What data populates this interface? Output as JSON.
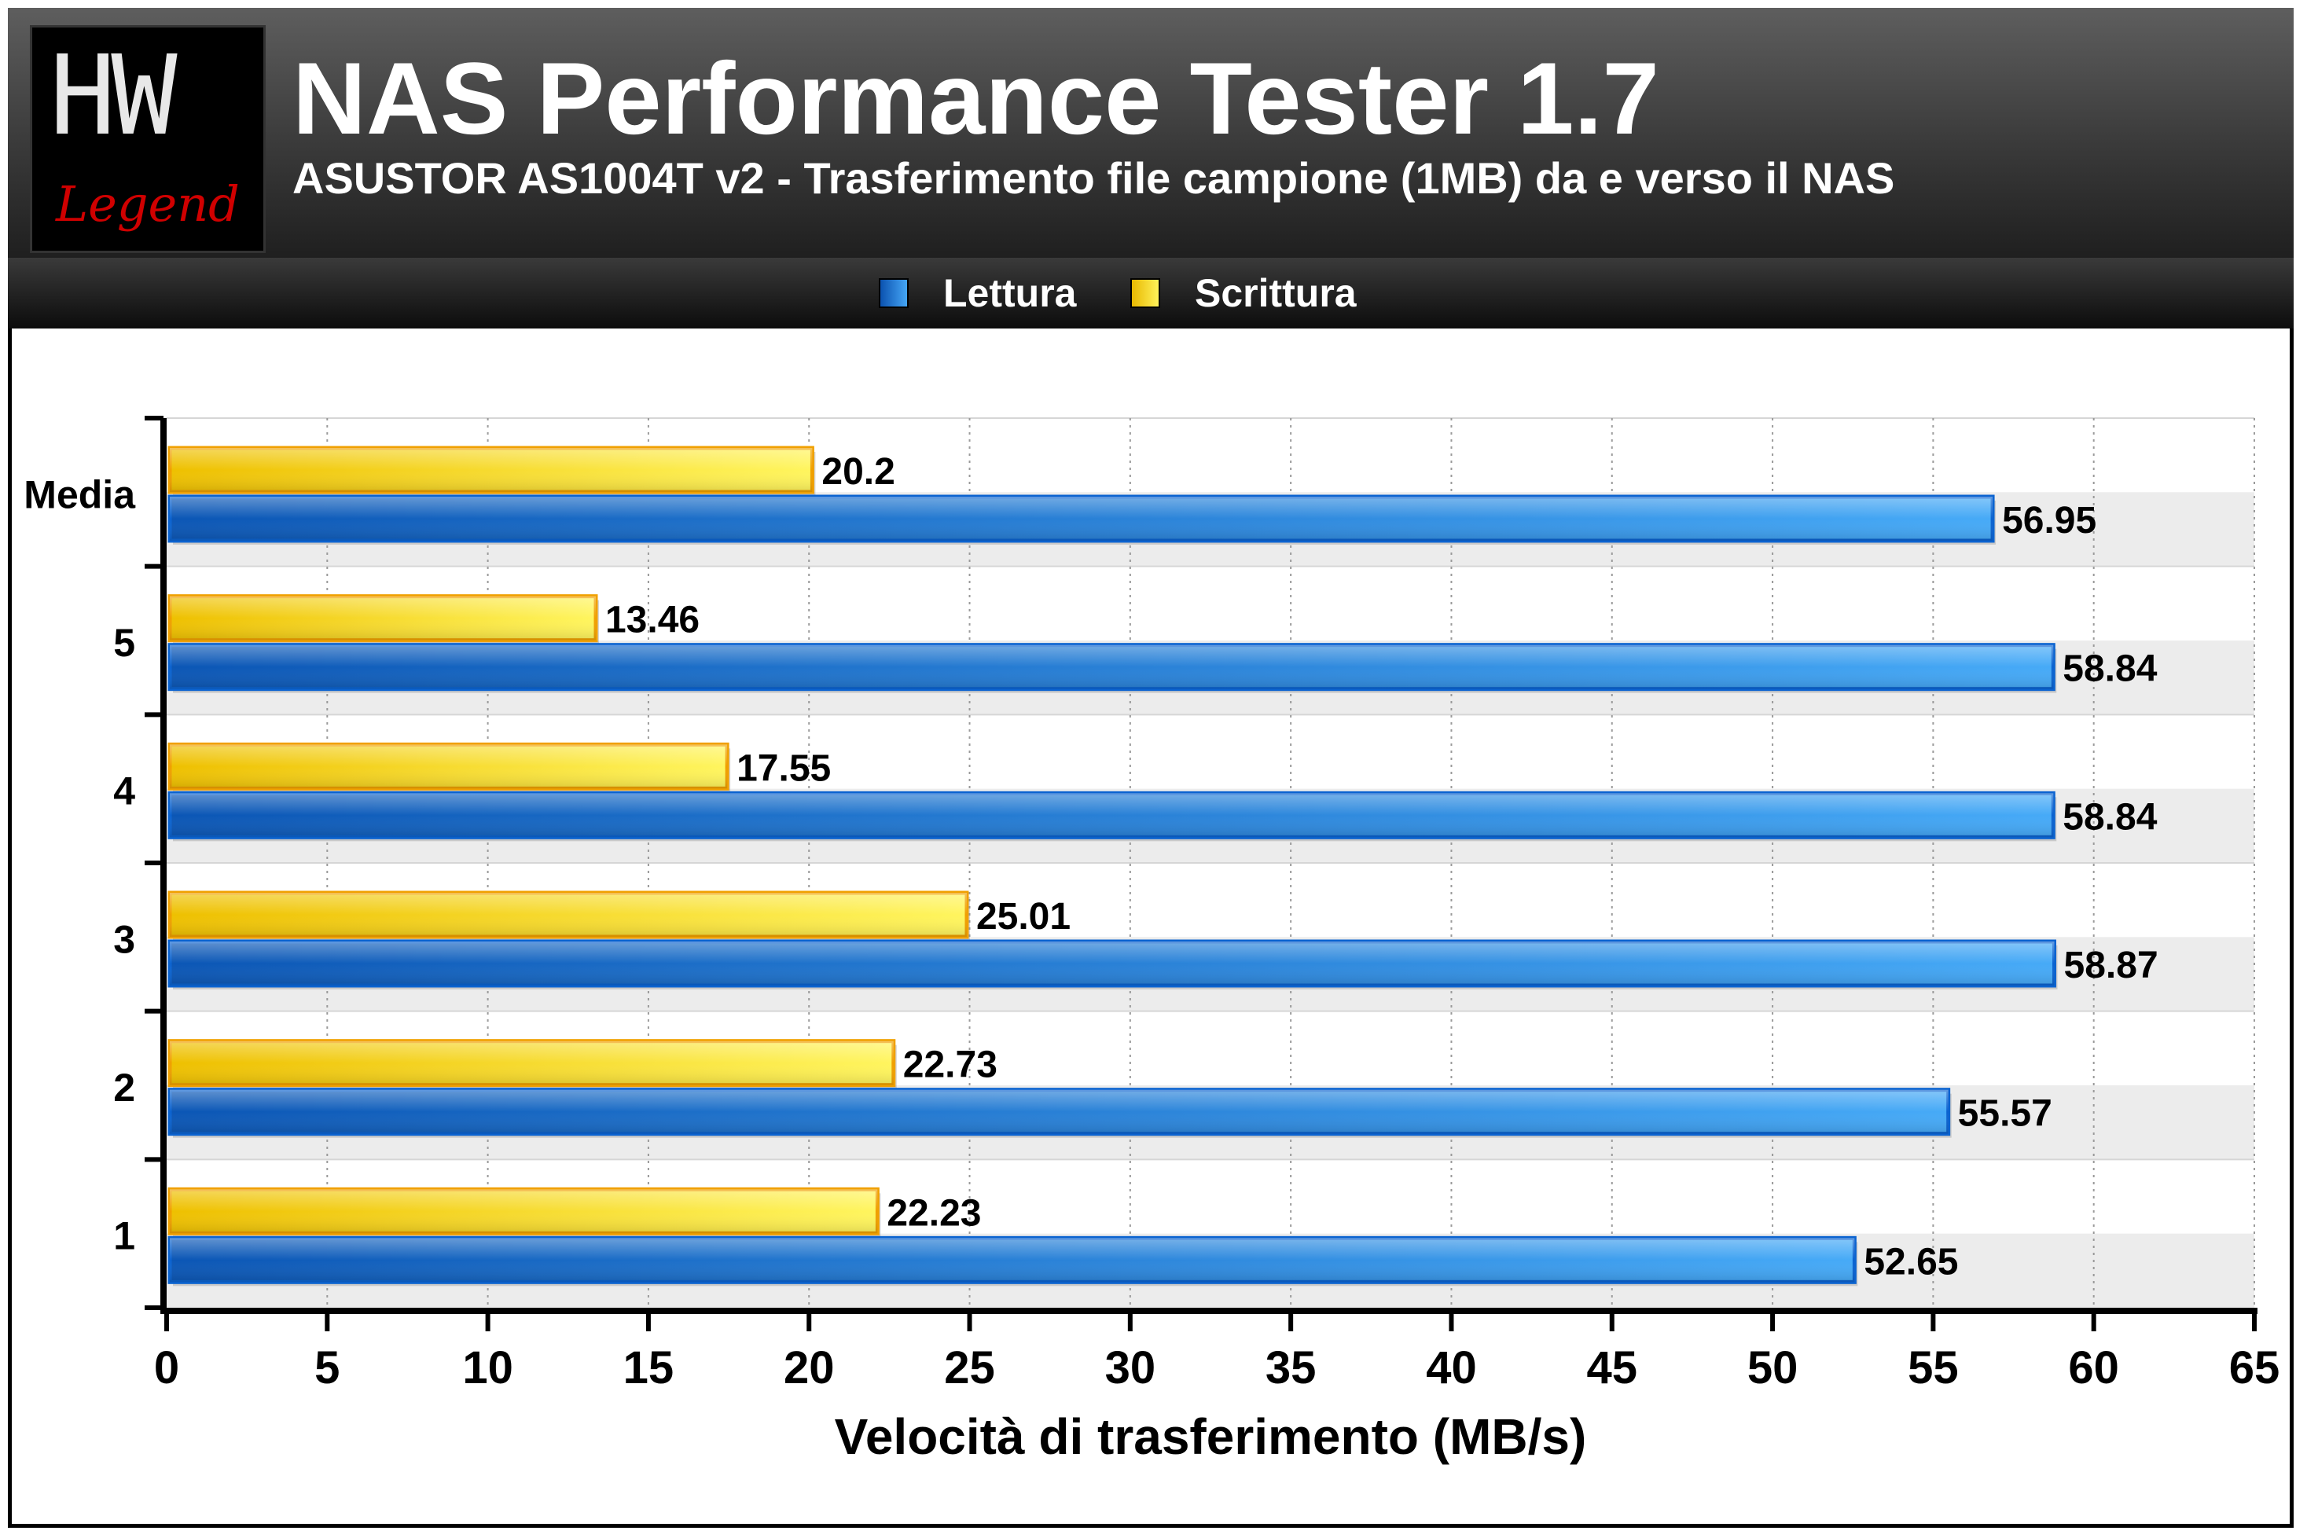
{
  "header": {
    "title": "NAS Performance Tester 1.7",
    "subtitle": "ASUSTOR AS1004T v2 - Trasferimento file campione (1MB) da e verso il NAS",
    "logo_top": "HW",
    "logo_bottom": "Legend"
  },
  "colors": {
    "lettura": "#1f78d4",
    "scrittura": "#f5d020",
    "logo_accent": "#d00000"
  },
  "chart_data": {
    "type": "bar",
    "orientation": "horizontal",
    "categories": [
      "Media",
      "5",
      "4",
      "3",
      "2",
      "1"
    ],
    "series": [
      {
        "name": "Scrittura",
        "values": [
          20.2,
          13.46,
          17.55,
          25.01,
          22.73,
          22.23
        ]
      },
      {
        "name": "Lettura",
        "values": [
          56.95,
          58.84,
          58.84,
          58.87,
          55.57,
          52.65
        ]
      }
    ],
    "value_labels": {
      "Scrittura": [
        "20.2",
        "13.46",
        "17.55",
        "25.01",
        "22.73",
        "22.23"
      ],
      "Lettura": [
        "56.95",
        "58.84",
        "58.84",
        "58.87",
        "55.57",
        "52.65"
      ]
    },
    "xlabel": "Velocità di trasferimento (MB/s)",
    "xlim": [
      0,
      65
    ],
    "xticks": [
      "0",
      "5",
      "10",
      "15",
      "20",
      "25",
      "30",
      "35",
      "40",
      "45",
      "50",
      "55",
      "60",
      "65"
    ],
    "grid": "vertical dotted",
    "legend": "top-center",
    "legend_entries": [
      "Lettura",
      "Scrittura"
    ]
  }
}
